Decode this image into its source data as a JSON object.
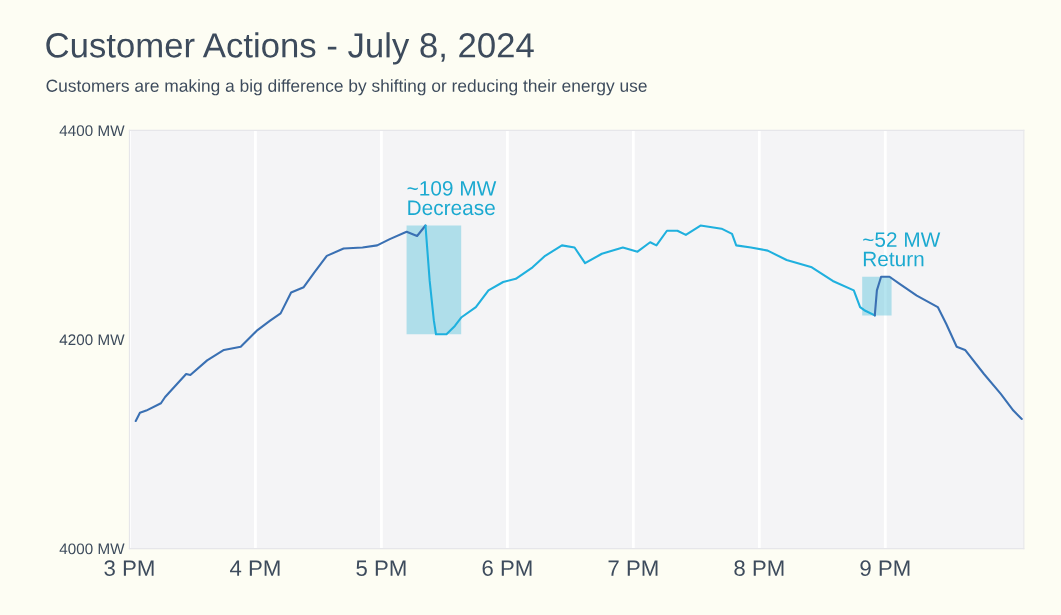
{
  "chart_data": {
    "type": "line",
    "title": "Customer Actions - July 8, 2024",
    "subtitle": "Customers are making a big difference by shifting or reducing their energy use",
    "series": [
      {
        "color": "#3a70b3",
        "x": [
          "2024-07-08T15:03",
          "2024-07-08T15:05",
          "2024-07-08T15:08",
          "2024-07-08T15:15",
          "2024-07-08T15:17",
          "2024-07-08T15:22",
          "2024-07-08T15:27",
          "2024-07-08T15:29",
          "2024-07-08T15:37",
          "2024-07-08T15:45",
          "2024-07-08T15:53",
          "2024-07-08T16:01",
          "2024-07-08T16:07",
          "2024-07-08T16:12",
          "2024-07-08T16:17",
          "2024-07-08T16:23",
          "2024-07-08T16:28",
          "2024-07-08T16:34",
          "2024-07-08T16:42",
          "2024-07-08T16:51",
          "2024-07-08T16:58",
          "2024-07-08T17:04",
          "2024-07-08T17:12",
          "2024-07-08T17:17",
          "2024-07-08T17:21"
        ],
        "values": [
          4122,
          4130,
          4132,
          4139,
          4145,
          4156,
          4167,
          4166,
          4180,
          4190,
          4193,
          4209,
          4218,
          4225,
          4245,
          4250,
          4264,
          4280,
          4287,
          4288,
          4290,
          4296,
          4303,
          4299,
          4309
        ]
      },
      {
        "color": "#1fb0de",
        "x": [
          "2024-07-08T17:21",
          "2024-07-08T17:23",
          "2024-07-08T17:25",
          "2024-07-08T17:26",
          "2024-07-08T17:31",
          "2024-07-08T17:35",
          "2024-07-08T17:38",
          "2024-07-08T17:45",
          "2024-07-08T17:51",
          "2024-07-08T17:58",
          "2024-07-08T18:04",
          "2024-07-08T18:12",
          "2024-07-08T18:18",
          "2024-07-08T18:26",
          "2024-07-08T18:32",
          "2024-07-08T18:37",
          "2024-07-08T18:45",
          "2024-07-08T18:55",
          "2024-07-08T19:02",
          "2024-07-08T19:08",
          "2024-07-08T19:11",
          "2024-07-08T19:16",
          "2024-07-08T19:21",
          "2024-07-08T19:25",
          "2024-07-08T19:32",
          "2024-07-08T19:42",
          "2024-07-08T19:47",
          "2024-07-08T19:49",
          "2024-07-08T19:56",
          "2024-07-08T20:04",
          "2024-07-08T20:13",
          "2024-07-08T20:25",
          "2024-07-08T20:35",
          "2024-07-08T20:45",
          "2024-07-08T20:48",
          "2024-07-08T20:50",
          "2024-07-08T20:55"
        ],
        "values": [
          4309,
          4256,
          4218,
          4205,
          4205,
          4213,
          4221,
          4231,
          4247,
          4255,
          4258,
          4269,
          4280,
          4290,
          4288,
          4273,
          4282,
          4288,
          4284,
          4293,
          4290,
          4304,
          4304,
          4300,
          4309,
          4306,
          4301,
          4290,
          4288,
          4285,
          4276,
          4269,
          4256,
          4247,
          4231,
          4228,
          4223
        ]
      },
      {
        "color": "#3a70b3",
        "x": [
          "2024-07-08T20:55",
          "2024-07-08T20:56",
          "2024-07-08T20:58",
          "2024-07-08T21:02",
          "2024-07-08T21:07",
          "2024-07-08T21:15",
          "2024-07-08T21:25",
          "2024-07-08T21:29",
          "2024-07-08T21:34",
          "2024-07-08T21:38",
          "2024-07-08T21:47",
          "2024-07-08T21:55",
          "2024-07-08T22:01",
          "2024-07-08T22:05"
        ],
        "values": [
          4223,
          4247,
          4260,
          4260,
          4253,
          4242,
          4231,
          4215,
          4193,
          4190,
          4167,
          4148,
          4132,
          4124
        ]
      }
    ],
    "xlim": [
      "2024-07-08T15:00",
      "2024-07-08T22:06"
    ],
    "xticks": [
      {
        "value": "2024-07-08T15:00",
        "label": "3 PM"
      },
      {
        "value": "2024-07-08T16:00",
        "label": "4 PM"
      },
      {
        "value": "2024-07-08T17:00",
        "label": "5 PM"
      },
      {
        "value": "2024-07-08T18:00",
        "label": "6 PM"
      },
      {
        "value": "2024-07-08T19:00",
        "label": "7 PM"
      },
      {
        "value": "2024-07-08T20:00",
        "label": "8 PM"
      },
      {
        "value": "2024-07-08T21:00",
        "label": "9 PM"
      }
    ],
    "ylim": [
      4000,
      4400
    ],
    "yticks": [
      {
        "value": 4000,
        "label": "4000 MW"
      },
      {
        "value": 4200,
        "label": "4200 MW"
      },
      {
        "value": 4400,
        "label": "4400 MW"
      }
    ],
    "bands": [
      {
        "axis": "x",
        "from": "2024-07-08T17:12",
        "to": "2024-07-08T17:38",
        "label": "~109 MW\nDecrease",
        "color": "#5bc4dc"
      },
      {
        "axis": "x",
        "from": "2024-07-08T20:49",
        "to": "2024-07-08T21:03",
        "label": "~52 MW\nReturn",
        "color": "#5bc4dc"
      }
    ],
    "grid": "x",
    "legend": false
  }
}
